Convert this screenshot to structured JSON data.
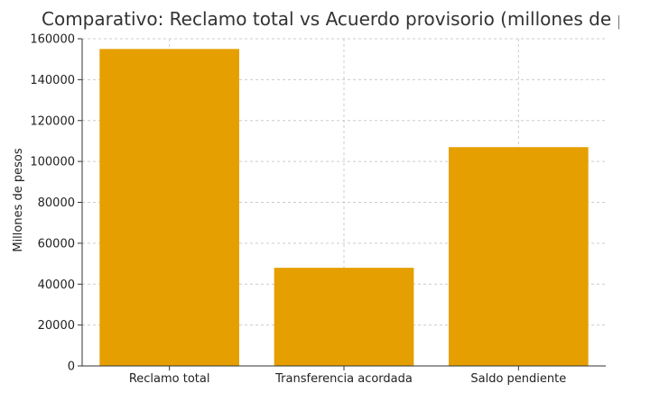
{
  "chart_data": {
    "type": "bar",
    "title": "Comparativo: Reclamo total vs Acuerdo provisorio (millones de pesos)",
    "xlabel": "",
    "ylabel": "Millones de pesos",
    "categories": [
      "Reclamo total",
      "Transferencia acordada",
      "Saldo pendiente"
    ],
    "values": [
      155000,
      48000,
      107000
    ],
    "ylim": [
      0,
      160000
    ],
    "yticks": [
      "0",
      "20000",
      "40000",
      "60000",
      "80000",
      "100000",
      "120000",
      "140000",
      "160000"
    ],
    "grid": true,
    "legend": "none",
    "bar_color": "#E69F00"
  }
}
